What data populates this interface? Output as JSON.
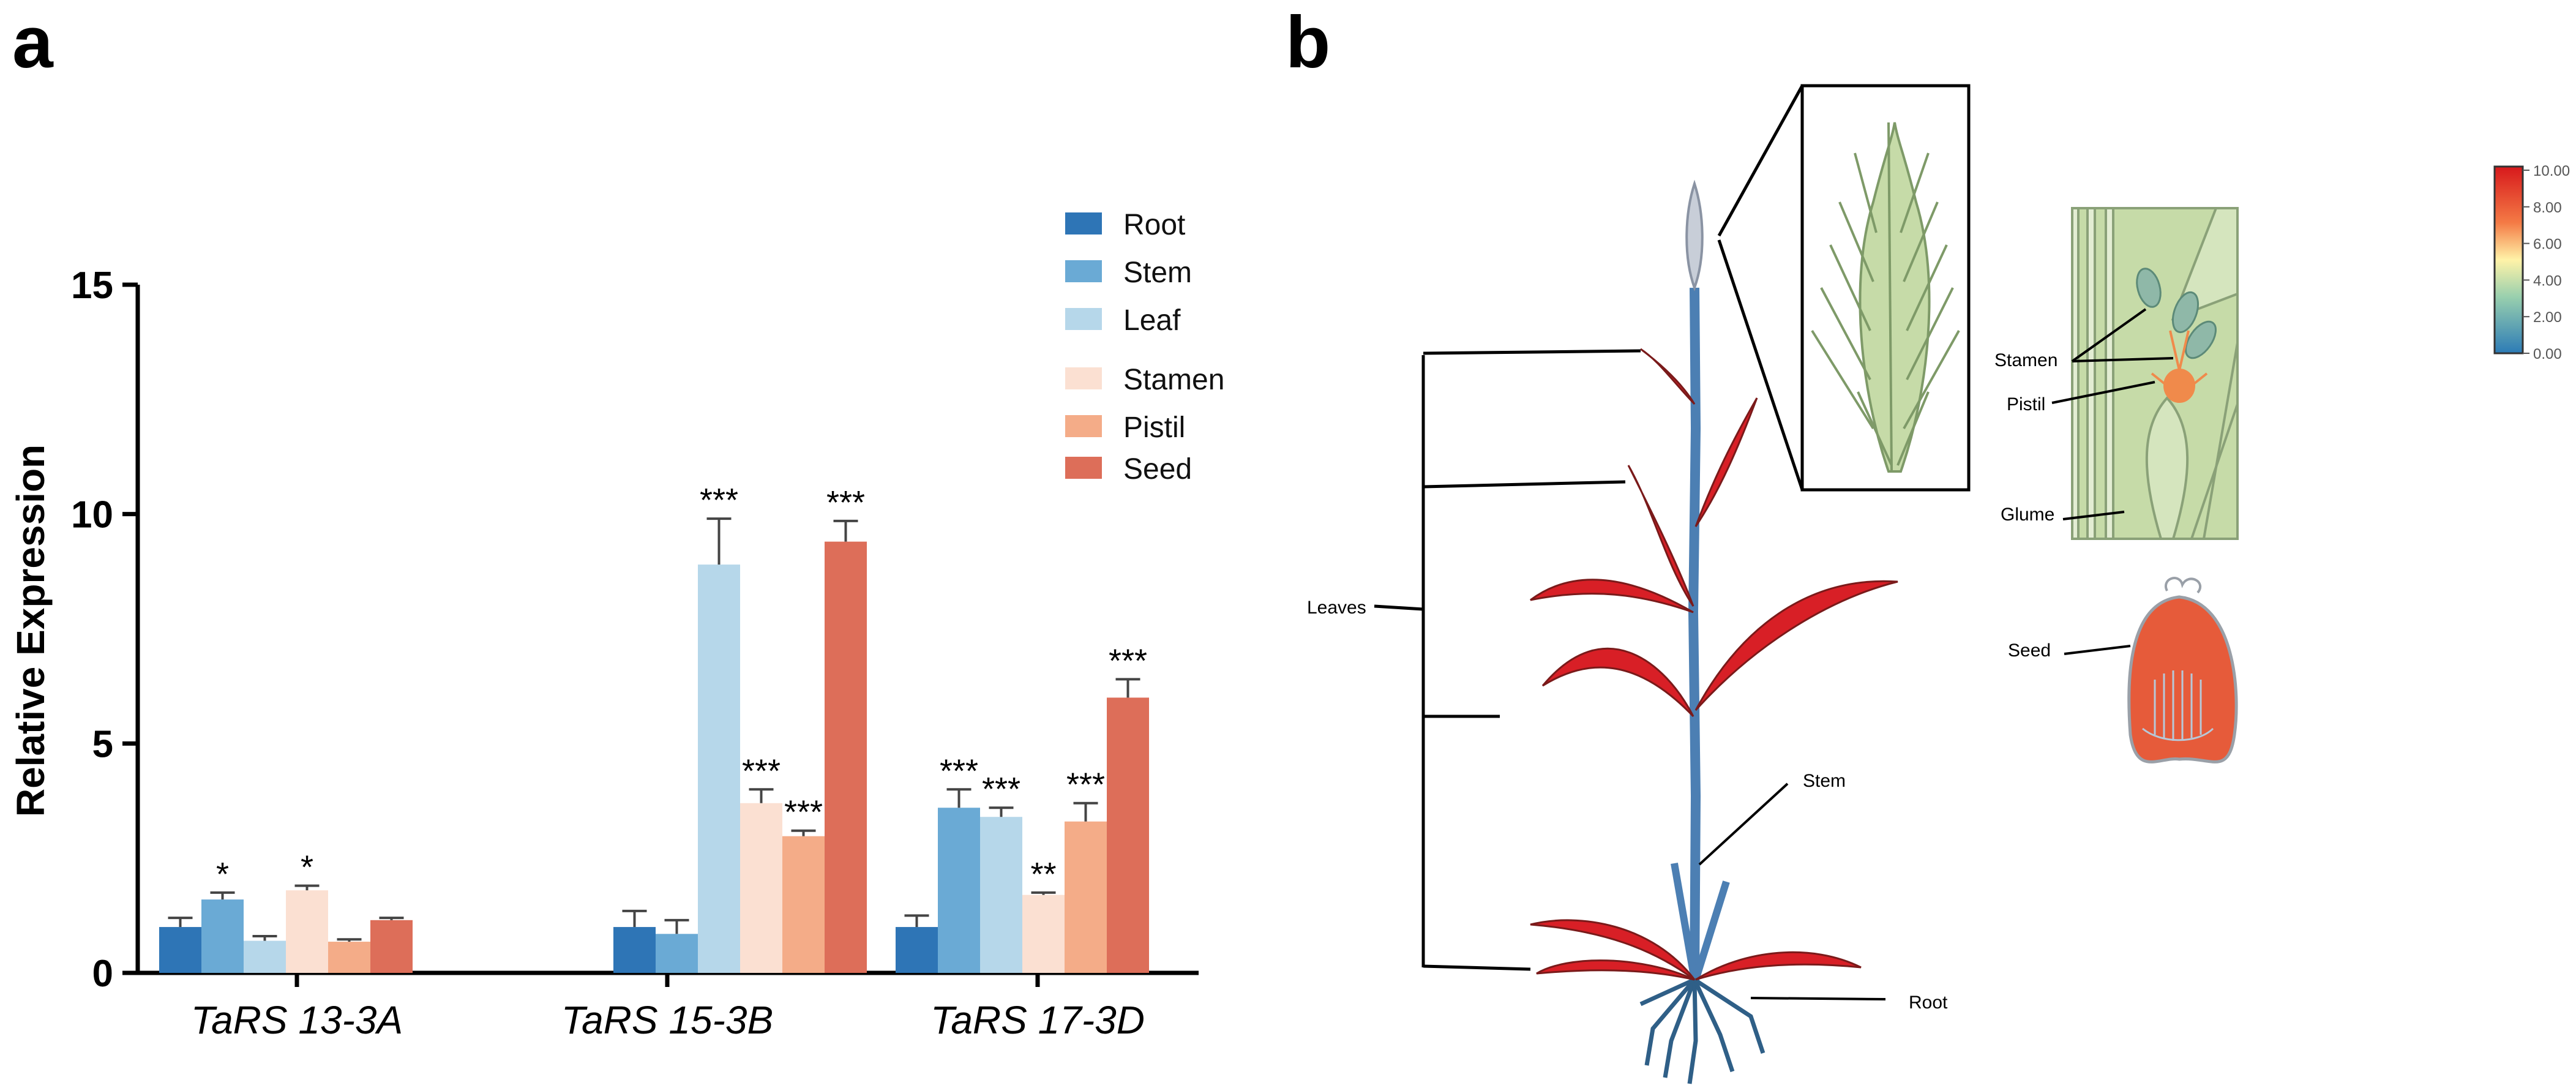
{
  "panels": {
    "a": "a",
    "b": "b"
  },
  "chart_data": {
    "type": "bar",
    "title": "",
    "xlabel": "",
    "ylabel": "Relative Expression",
    "ylim": [
      0,
      15
    ],
    "yticks": [
      "0",
      "5",
      "10",
      "15"
    ],
    "categories": [
      "TaRS 13-3A",
      "TaRS 15-3B",
      "TaRS 17-3D"
    ],
    "series": [
      {
        "name": "Root",
        "color": "#2E75B6",
        "values": [
          1.0,
          1.0,
          1.0
        ],
        "errors": [
          0.2,
          0.35,
          0.25
        ],
        "stars": [
          "",
          "",
          ""
        ]
      },
      {
        "name": "Stem",
        "color": "#6AAAD5",
        "values": [
          1.6,
          0.85,
          3.6
        ],
        "errors": [
          0.15,
          0.3,
          0.4
        ],
        "stars": [
          "*",
          "",
          "***"
        ]
      },
      {
        "name": "Leaf",
        "color": "#B6D7EA",
        "values": [
          0.7,
          8.9,
          3.4
        ],
        "errors": [
          0.1,
          1.0,
          0.2
        ],
        "stars": [
          "",
          "***",
          "***"
        ]
      },
      {
        "name": "Stamen",
        "color": "#FBE0D2",
        "values": [
          1.8,
          3.7,
          1.7
        ],
        "errors": [
          0.1,
          0.3,
          0.05
        ],
        "stars": [
          "*",
          "***",
          "**"
        ]
      },
      {
        "name": "Pistil",
        "color": "#F4AC88",
        "values": [
          0.68,
          2.98,
          3.3
        ],
        "errors": [
          0.05,
          0.12,
          0.4
        ],
        "stars": [
          "",
          "***",
          "***"
        ]
      },
      {
        "name": "Seed",
        "color": "#DD6E59",
        "values": [
          1.15,
          9.4,
          6.0
        ],
        "errors": [
          0.05,
          0.45,
          0.4
        ],
        "stars": [
          "",
          "***",
          "***"
        ]
      }
    ],
    "legend_position": "top-right"
  },
  "diagram": {
    "labels": {
      "leaves": "Leaves",
      "stem": "Stem",
      "root": "Root",
      "stamen": "Stamen",
      "pistil": "Pistil",
      "glume": "Glume",
      "seed": "Seed"
    },
    "colorbar": {
      "ticks": [
        "10.00",
        "8.00",
        "6.00",
        "4.00",
        "2.00",
        "0.00"
      ],
      "colors": {
        "high": "#D7191C",
        "mid": "#FFF3A8",
        "low": "#2C7BB6"
      }
    },
    "colors": {
      "leaf_red": "#D81F26",
      "stem_blue": "#4C7FB3",
      "root_blue": "#2F5F87",
      "spike_green": "#BFD6A0",
      "seed_orange": "#E65B3A",
      "stamen_teal": "#8FB8A8",
      "pistil_orange": "#F08A4B"
    }
  }
}
